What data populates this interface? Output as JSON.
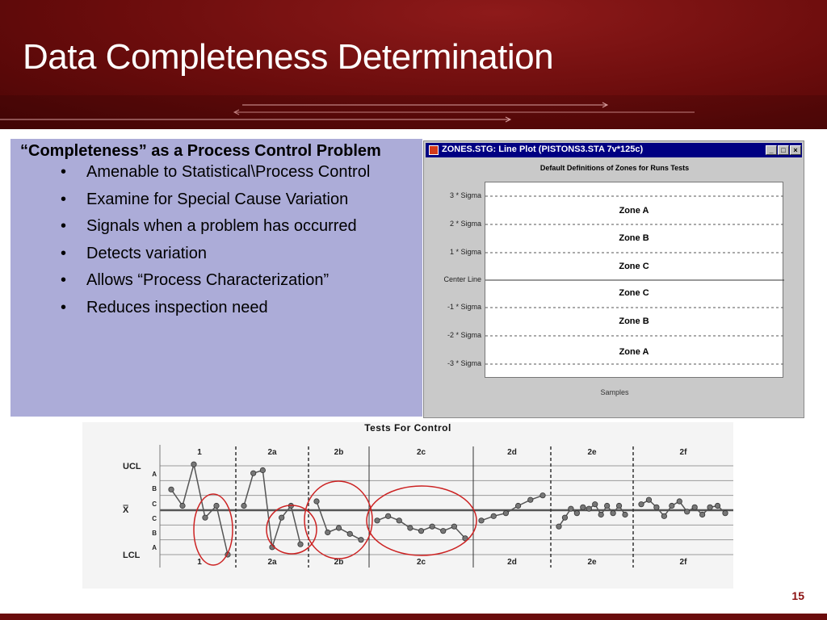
{
  "slide": {
    "title": "Data Completeness Determination",
    "page_number": "15"
  },
  "left_panel": {
    "heading": "“Completeness” as a Process Control Problem",
    "bullet_char": "•",
    "bullets": [
      "Amenable to Statistical\\Process Control",
      "Examine for Special Cause Variation",
      "Signals when a problem has occurred",
      "Detects variation",
      "Allows “Process Characterization”",
      "Reduces inspection need"
    ]
  },
  "window": {
    "title": "ZONES.STG: Line Plot (PISTONS3.STA 7v*125c)",
    "buttons": [
      "_",
      "□",
      "×"
    ],
    "plot_title": "Default Definitions of Zones for Runs Tests",
    "y_labels": [
      "3 * Sigma",
      "2 * Sigma",
      "1 * Sigma",
      "Center Line",
      "-1 * Sigma",
      "-2 * Sigma",
      "-3 * Sigma"
    ],
    "zones": [
      "Zone A",
      "Zone B",
      "Zone C",
      "Zone C",
      "Zone B",
      "Zone A"
    ],
    "x_label": "Samples"
  },
  "chart_data": {
    "type": "line",
    "title": "Tests For Control",
    "y_axis_labels": [
      "UCL",
      "A",
      "B",
      "C",
      "X̿",
      "C",
      "B",
      "A",
      "LCL"
    ],
    "top_section_labels": [
      "1",
      "2a",
      "2b",
      "2c",
      "2d",
      "2e",
      "2f"
    ],
    "bottom_section_labels": [
      "1",
      "2a",
      "2b",
      "2c",
      "2d",
      "2e",
      "2f"
    ],
    "y_scale": {
      "UCL": 3,
      "centerline": 0,
      "LCL": -3
    },
    "sections": [
      {
        "name": "1",
        "values": [
          1.4,
          0.3,
          3.1,
          -0.5,
          0.3,
          -3.0
        ]
      },
      {
        "name": "2a",
        "values": [
          0.3,
          2.5,
          2.7,
          -2.5,
          -0.5,
          0.3,
          -2.3
        ]
      },
      {
        "name": "2b",
        "values": [
          0.6,
          -1.5,
          -1.2,
          -1.6,
          -2.0
        ]
      },
      {
        "name": "2c",
        "values": [
          -0.7,
          -0.4,
          -0.7,
          -1.2,
          -1.4,
          -1.1,
          -1.4,
          -1.1,
          -1.9
        ]
      },
      {
        "name": "2d",
        "values": [
          -0.7,
          -0.4,
          -0.2,
          0.3,
          0.7,
          1.0
        ]
      },
      {
        "name": "2e",
        "values": [
          -1.1,
          -0.5,
          0.1,
          -0.2,
          0.2,
          0.1,
          0.4,
          -0.3,
          0.3,
          -0.2,
          0.3,
          -0.3
        ]
      },
      {
        "name": "2f",
        "values": [
          0.4,
          0.7,
          0.2,
          -0.4,
          0.3,
          0.6,
          -0.1,
          0.2,
          -0.3,
          0.2,
          0.3,
          -0.2
        ]
      }
    ],
    "circled_sections": [
      "1",
      "2a",
      "2b",
      "2c"
    ],
    "grid": true,
    "colors": {
      "line": "#555555",
      "point": "#777777",
      "circle": "#cc2222"
    }
  }
}
